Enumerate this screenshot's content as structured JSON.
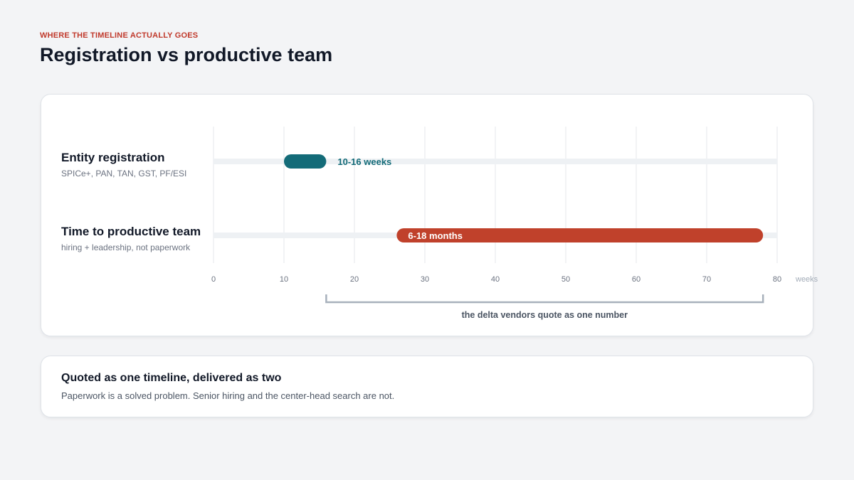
{
  "header": {
    "eyebrow": "WHERE THE TIMELINE ACTUALLY GOES",
    "title": "Registration vs productive team"
  },
  "rows": [
    {
      "name": "Entity registration",
      "sub": "SPICe+, PAN, TAN, GST, PF/ESI"
    },
    {
      "name": "Time to productive team",
      "sub": "hiring + leadership, not paperwork"
    }
  ],
  "chart_data": {
    "type": "bar",
    "orientation": "horizontal-range",
    "categories": [
      "Entity registration",
      "Time to productive team"
    ],
    "series": [
      {
        "category": "Entity registration",
        "start": 10,
        "end": 16,
        "label": "10-16 weeks",
        "color": "#136b78",
        "label_position": "outside"
      },
      {
        "category": "Time to productive team",
        "start": 26,
        "end": 78,
        "label": "6-18 months",
        "color": "#c0412b",
        "label_position": "inside"
      }
    ],
    "xlim": [
      0,
      80
    ],
    "xticks": [
      0,
      10,
      20,
      30,
      40,
      50,
      60,
      70,
      80
    ],
    "xlabel": "weeks",
    "grid": true,
    "annotation": {
      "start": 16,
      "end": 78,
      "text": "the delta vendors quote as one number"
    }
  },
  "note": {
    "title": "Quoted as one timeline, delivered as two",
    "body": "Paperwork is a solved problem. Senior hiring and the center-head search are not."
  }
}
